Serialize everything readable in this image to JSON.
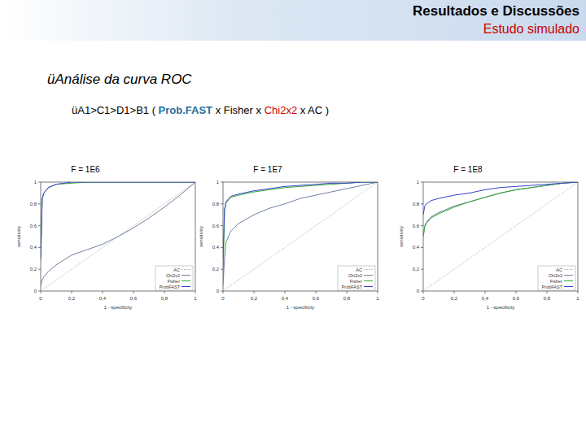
{
  "slide": {
    "header": "Resultados e Discussões",
    "subheader": "Estudo simulado",
    "bullets": [
      [
        {
          "text": "üAnálise da curva ROC",
          "color": "#000000"
        }
      ],
      [
        {
          "text": "üA1>C1>D1>B1 ( ",
          "color": "#000000"
        },
        {
          "text": "Prob.FAST",
          "color": "#1f6f9f"
        },
        {
          "text": " x Fisher x ",
          "color": "#000000"
        },
        {
          "text": "Chi2x2",
          "color": "#cc0000"
        },
        {
          "text": " x AC )",
          "color": "#000000"
        }
      ]
    ]
  },
  "chart_data": [
    {
      "type": "line",
      "title": "F = 1E6",
      "x_label": "1 - specificity",
      "y_label": "sensitivity",
      "x": [
        0,
        0.01,
        0.02,
        0.05,
        0.1,
        0.2,
        0.3,
        0.4,
        0.5,
        0.6,
        0.7,
        0.8,
        0.9,
        1
      ],
      "series": [
        {
          "name": "AC",
          "color": "#aaaaaa",
          "line_style": "dotted",
          "values": [
            0,
            0.01,
            0.02,
            0.05,
            0.1,
            0.2,
            0.3,
            0.4,
            0.5,
            0.6,
            0.7,
            0.8,
            0.9,
            1
          ]
        },
        {
          "name": "Chi2x2",
          "color": "#7080a0",
          "line_style": "solid",
          "values": [
            0.05,
            0.1,
            0.13,
            0.18,
            0.24,
            0.33,
            0.38,
            0.43,
            0.5,
            0.58,
            0.67,
            0.77,
            0.88,
            1
          ]
        },
        {
          "name": "Fisher",
          "color": "#33aa33",
          "line_style": "solid",
          "values": [
            0.28,
            0.84,
            0.9,
            0.95,
            0.98,
            0.99,
            1,
            1,
            1,
            1,
            1,
            1,
            1,
            1
          ]
        },
        {
          "name": "ProbFAST",
          "color": "#3344cc",
          "line_style": "solid",
          "values": [
            0.3,
            0.85,
            0.9,
            0.95,
            0.98,
            1,
            1,
            1,
            1,
            1,
            1,
            1,
            1,
            1
          ]
        }
      ],
      "xlim": [
        0,
        1
      ],
      "ylim": [
        0,
        1
      ],
      "xticks": [
        0,
        {
          "value": 0.2,
          "label": "0,2"
        },
        {
          "value": 0.4,
          "label": "0,4"
        },
        {
          "value": 0.6,
          "label": "0,6"
        },
        {
          "value": 0.8,
          "label": "0,8"
        },
        1
      ],
      "yticks": [
        0,
        {
          "value": 0.2,
          "label": "0,2"
        },
        {
          "value": 0.4,
          "label": "0,4"
        },
        {
          "value": 0.6,
          "label": "0,6"
        },
        {
          "value": 0.8,
          "label": "0,8"
        },
        1
      ],
      "legend": "bottom-right",
      "grid": false
    },
    {
      "type": "line",
      "title": "F = 1E7",
      "x_label": "1 - specificity",
      "y_label": "sensitivity",
      "x": [
        0,
        0.01,
        0.02,
        0.05,
        0.1,
        0.2,
        0.3,
        0.4,
        0.5,
        0.6,
        0.7,
        0.8,
        0.9,
        1
      ],
      "series": [
        {
          "name": "AC",
          "color": "#aaaaaa",
          "line_style": "dotted",
          "values": [
            0,
            0.01,
            0.02,
            0.05,
            0.1,
            0.2,
            0.3,
            0.4,
            0.5,
            0.6,
            0.7,
            0.8,
            0.9,
            1
          ]
        },
        {
          "name": "Chi2x2",
          "color": "#7080a0",
          "line_style": "solid",
          "values": [
            0.05,
            0.3,
            0.45,
            0.55,
            0.62,
            0.7,
            0.76,
            0.8,
            0.85,
            0.88,
            0.91,
            0.94,
            0.97,
            1
          ]
        },
        {
          "name": "Fisher",
          "color": "#33aa33",
          "line_style": "solid",
          "values": [
            0.1,
            0.74,
            0.81,
            0.86,
            0.88,
            0.91,
            0.93,
            0.95,
            0.96,
            0.97,
            0.98,
            0.99,
            1,
            1
          ]
        },
        {
          "name": "ProbFAST",
          "color": "#3344cc",
          "line_style": "solid",
          "values": [
            0.3,
            0.75,
            0.82,
            0.87,
            0.89,
            0.92,
            0.94,
            0.96,
            0.97,
            0.98,
            0.99,
            0.99,
            1,
            1
          ]
        }
      ],
      "xlim": [
        0,
        1
      ],
      "ylim": [
        0,
        1
      ],
      "xticks": [
        0,
        {
          "value": 0.2,
          "label": "0,2"
        },
        {
          "value": 0.4,
          "label": "0,4"
        },
        {
          "value": 0.6,
          "label": "0,6"
        },
        {
          "value": 0.8,
          "label": "0,8"
        },
        1
      ],
      "yticks": [
        0,
        {
          "value": 0.2,
          "label": "0,2"
        },
        {
          "value": 0.4,
          "label": "0,4"
        },
        {
          "value": 0.6,
          "label": "0,6"
        },
        {
          "value": 0.8,
          "label": "0,8"
        },
        1
      ],
      "legend": "bottom-right",
      "grid": false
    },
    {
      "type": "line",
      "title": "F = 1E8",
      "x_label": "1 - specificity",
      "y_label": "sensitivity",
      "x": [
        0,
        0.01,
        0.02,
        0.05,
        0.1,
        0.2,
        0.3,
        0.4,
        0.5,
        0.6,
        0.7,
        0.8,
        0.9,
        1
      ],
      "series": [
        {
          "name": "AC",
          "color": "#aaaaaa",
          "line_style": "dotted",
          "values": [
            0,
            0.01,
            0.02,
            0.05,
            0.1,
            0.2,
            0.3,
            0.4,
            0.5,
            0.6,
            0.7,
            0.8,
            0.9,
            1
          ]
        },
        {
          "name": "Chi2x2",
          "color": "#7080a0",
          "line_style": "solid",
          "values": [
            0.5,
            0.6,
            0.63,
            0.68,
            0.72,
            0.78,
            0.82,
            0.86,
            0.9,
            0.93,
            0.95,
            0.97,
            0.99,
            1
          ]
        },
        {
          "name": "Fisher",
          "color": "#33aa33",
          "line_style": "solid",
          "values": [
            0.5,
            0.59,
            0.62,
            0.67,
            0.71,
            0.77,
            0.82,
            0.86,
            0.9,
            0.93,
            0.95,
            0.97,
            0.99,
            1
          ]
        },
        {
          "name": "ProbFAST",
          "color": "#3344cc",
          "line_style": "solid",
          "values": [
            0.7,
            0.78,
            0.8,
            0.83,
            0.85,
            0.88,
            0.9,
            0.93,
            0.95,
            0.96,
            0.97,
            0.98,
            0.99,
            1
          ]
        }
      ],
      "xlim": [
        0,
        1
      ],
      "ylim": [
        0,
        1
      ],
      "xticks": [
        0,
        {
          "value": 0.2,
          "label": "0,2"
        },
        {
          "value": 0.4,
          "label": "0,4"
        },
        {
          "value": 0.6,
          "label": "0,6"
        },
        {
          "value": 0.8,
          "label": "0,8"
        },
        1
      ],
      "yticks": [
        0,
        {
          "value": 0.2,
          "label": "0,2"
        },
        {
          "value": 0.4,
          "label": "0,4"
        },
        {
          "value": 0.6,
          "label": "0,6"
        },
        {
          "value": 0.8,
          "label": "0,8"
        },
        1
      ],
      "legend": "bottom-right",
      "grid": false
    }
  ]
}
